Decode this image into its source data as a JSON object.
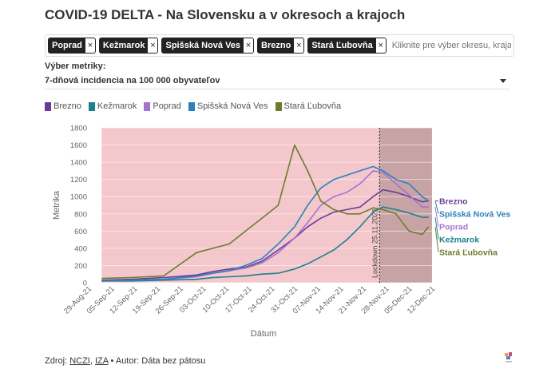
{
  "title": "COVID-19 DELTA - Na Slovensku a v okresoch a krajoch",
  "filter": {
    "chips": [
      "Poprad",
      "Kežmarok",
      "Spišská Nová Ves",
      "Brezno",
      "Stará Ľubovňa"
    ],
    "remove_glyph": "×",
    "placeholder": "Kliknite pre výber okresu, kraja al..."
  },
  "metric": {
    "label": "Výber metriky:",
    "value": "7-dňová incidencia na 100 000 obyvateľov"
  },
  "footer": {
    "source_prefix": "Zdroj: ",
    "source_1": "NCZI",
    "separator": ", ",
    "source_2": "IZA",
    "author": " • Autor: Dáta bez pátosu"
  },
  "colors": {
    "Brezno": "#6b3c96",
    "Kežmarok": "#1e7f8f",
    "Poprad": "#a673cf",
    "Spišská Nová Ves": "#2c80bd",
    "Stará Ľubovňa": "#6b7d2a",
    "shade_main": "#f3c7cb",
    "shade_lockdown": "#c8a3a6"
  },
  "chart_data": {
    "type": "line",
    "xlabel": "Dátum",
    "ylabel": "Metrika",
    "ylim": [
      0,
      1800
    ],
    "yticks": [
      0,
      200,
      400,
      600,
      800,
      1000,
      1200,
      1400,
      1600,
      1800
    ],
    "x_range": [
      "2021-08-29",
      "2021-12-12"
    ],
    "xticks": [
      "29-Aug-21",
      "05-Sep-21",
      "12-Sep-21",
      "19-Sep-21",
      "26-Sep-21",
      "03-Oct-21",
      "10-Oct-21",
      "17-Oct-21",
      "24-Oct-21",
      "31-Oct-21",
      "07-Nov-21",
      "14-Nov-21",
      "21-Nov-21",
      "28-Nov-21",
      "05-Dec-21",
      "12-Dec-21"
    ],
    "shaded_region": [
      "2021-09-01",
      "2021-12-11"
    ],
    "lockdown_region": [
      "2021-11-25",
      "2021-12-11"
    ],
    "annotation": {
      "text": "Lockdown 25.11.2021",
      "date": "2021-11-25"
    },
    "series": [
      {
        "name": "Brezno",
        "x": [
          "2021-09-01",
          "2021-09-10",
          "2021-09-20",
          "2021-09-30",
          "2021-10-05",
          "2021-10-10",
          "2021-10-15",
          "2021-10-20",
          "2021-10-25",
          "2021-10-30",
          "2021-11-03",
          "2021-11-07",
          "2021-11-11",
          "2021-11-15",
          "2021-11-19",
          "2021-11-23",
          "2021-11-26",
          "2021-11-30",
          "2021-12-04",
          "2021-12-08",
          "2021-12-10"
        ],
        "y": [
          30,
          40,
          60,
          90,
          130,
          160,
          180,
          250,
          380,
          520,
          650,
          750,
          820,
          850,
          880,
          1000,
          1080,
          1050,
          1000,
          940,
          950
        ]
      },
      {
        "name": "Kežmarok",
        "x": [
          "2021-09-01",
          "2021-09-10",
          "2021-09-20",
          "2021-09-30",
          "2021-10-05",
          "2021-10-10",
          "2021-10-15",
          "2021-10-20",
          "2021-10-25",
          "2021-10-30",
          "2021-11-03",
          "2021-11-07",
          "2021-11-11",
          "2021-11-15",
          "2021-11-19",
          "2021-11-23",
          "2021-11-26",
          "2021-11-30",
          "2021-12-04",
          "2021-12-08",
          "2021-12-10"
        ],
        "y": [
          20,
          20,
          30,
          40,
          60,
          70,
          80,
          100,
          110,
          160,
          220,
          300,
          380,
          500,
          650,
          820,
          880,
          850,
          810,
          760,
          760
        ]
      },
      {
        "name": "Poprad",
        "x": [
          "2021-09-01",
          "2021-09-10",
          "2021-09-20",
          "2021-09-30",
          "2021-10-05",
          "2021-10-10",
          "2021-10-15",
          "2021-10-20",
          "2021-10-25",
          "2021-10-30",
          "2021-11-03",
          "2021-11-07",
          "2021-11-11",
          "2021-11-15",
          "2021-11-19",
          "2021-11-23",
          "2021-11-26",
          "2021-11-30",
          "2021-12-04",
          "2021-12-08",
          "2021-12-10"
        ],
        "y": [
          20,
          30,
          40,
          70,
          110,
          140,
          170,
          230,
          350,
          520,
          700,
          900,
          1000,
          1050,
          1150,
          1300,
          1280,
          1150,
          1020,
          880,
          880
        ]
      },
      {
        "name": "Spišská Nová Ves",
        "x": [
          "2021-09-01",
          "2021-09-10",
          "2021-09-20",
          "2021-09-30",
          "2021-10-05",
          "2021-10-10",
          "2021-10-15",
          "2021-10-20",
          "2021-10-25",
          "2021-10-30",
          "2021-11-03",
          "2021-11-07",
          "2021-11-11",
          "2021-11-15",
          "2021-11-19",
          "2021-11-23",
          "2021-11-26",
          "2021-11-30",
          "2021-12-04",
          "2021-12-08",
          "2021-12-10"
        ],
        "y": [
          20,
          30,
          40,
          80,
          110,
          140,
          200,
          280,
          450,
          650,
          900,
          1100,
          1200,
          1250,
          1300,
          1350,
          1300,
          1200,
          1150,
          1000,
          950
        ]
      },
      {
        "name": "Stará Ľubovňa",
        "x": [
          "2021-09-01",
          "2021-09-10",
          "2021-09-20",
          "2021-09-30",
          "2021-10-05",
          "2021-10-10",
          "2021-10-15",
          "2021-10-20",
          "2021-10-25",
          "2021-10-30",
          "2021-11-03",
          "2021-11-07",
          "2021-11-11",
          "2021-11-15",
          "2021-11-19",
          "2021-11-23",
          "2021-11-26",
          "2021-11-30",
          "2021-12-04",
          "2021-12-08",
          "2021-12-10"
        ],
        "y": [
          50,
          60,
          80,
          350,
          400,
          450,
          600,
          750,
          900,
          1600,
          1300,
          950,
          850,
          800,
          800,
          870,
          850,
          800,
          600,
          560,
          650
        ]
      }
    ]
  }
}
